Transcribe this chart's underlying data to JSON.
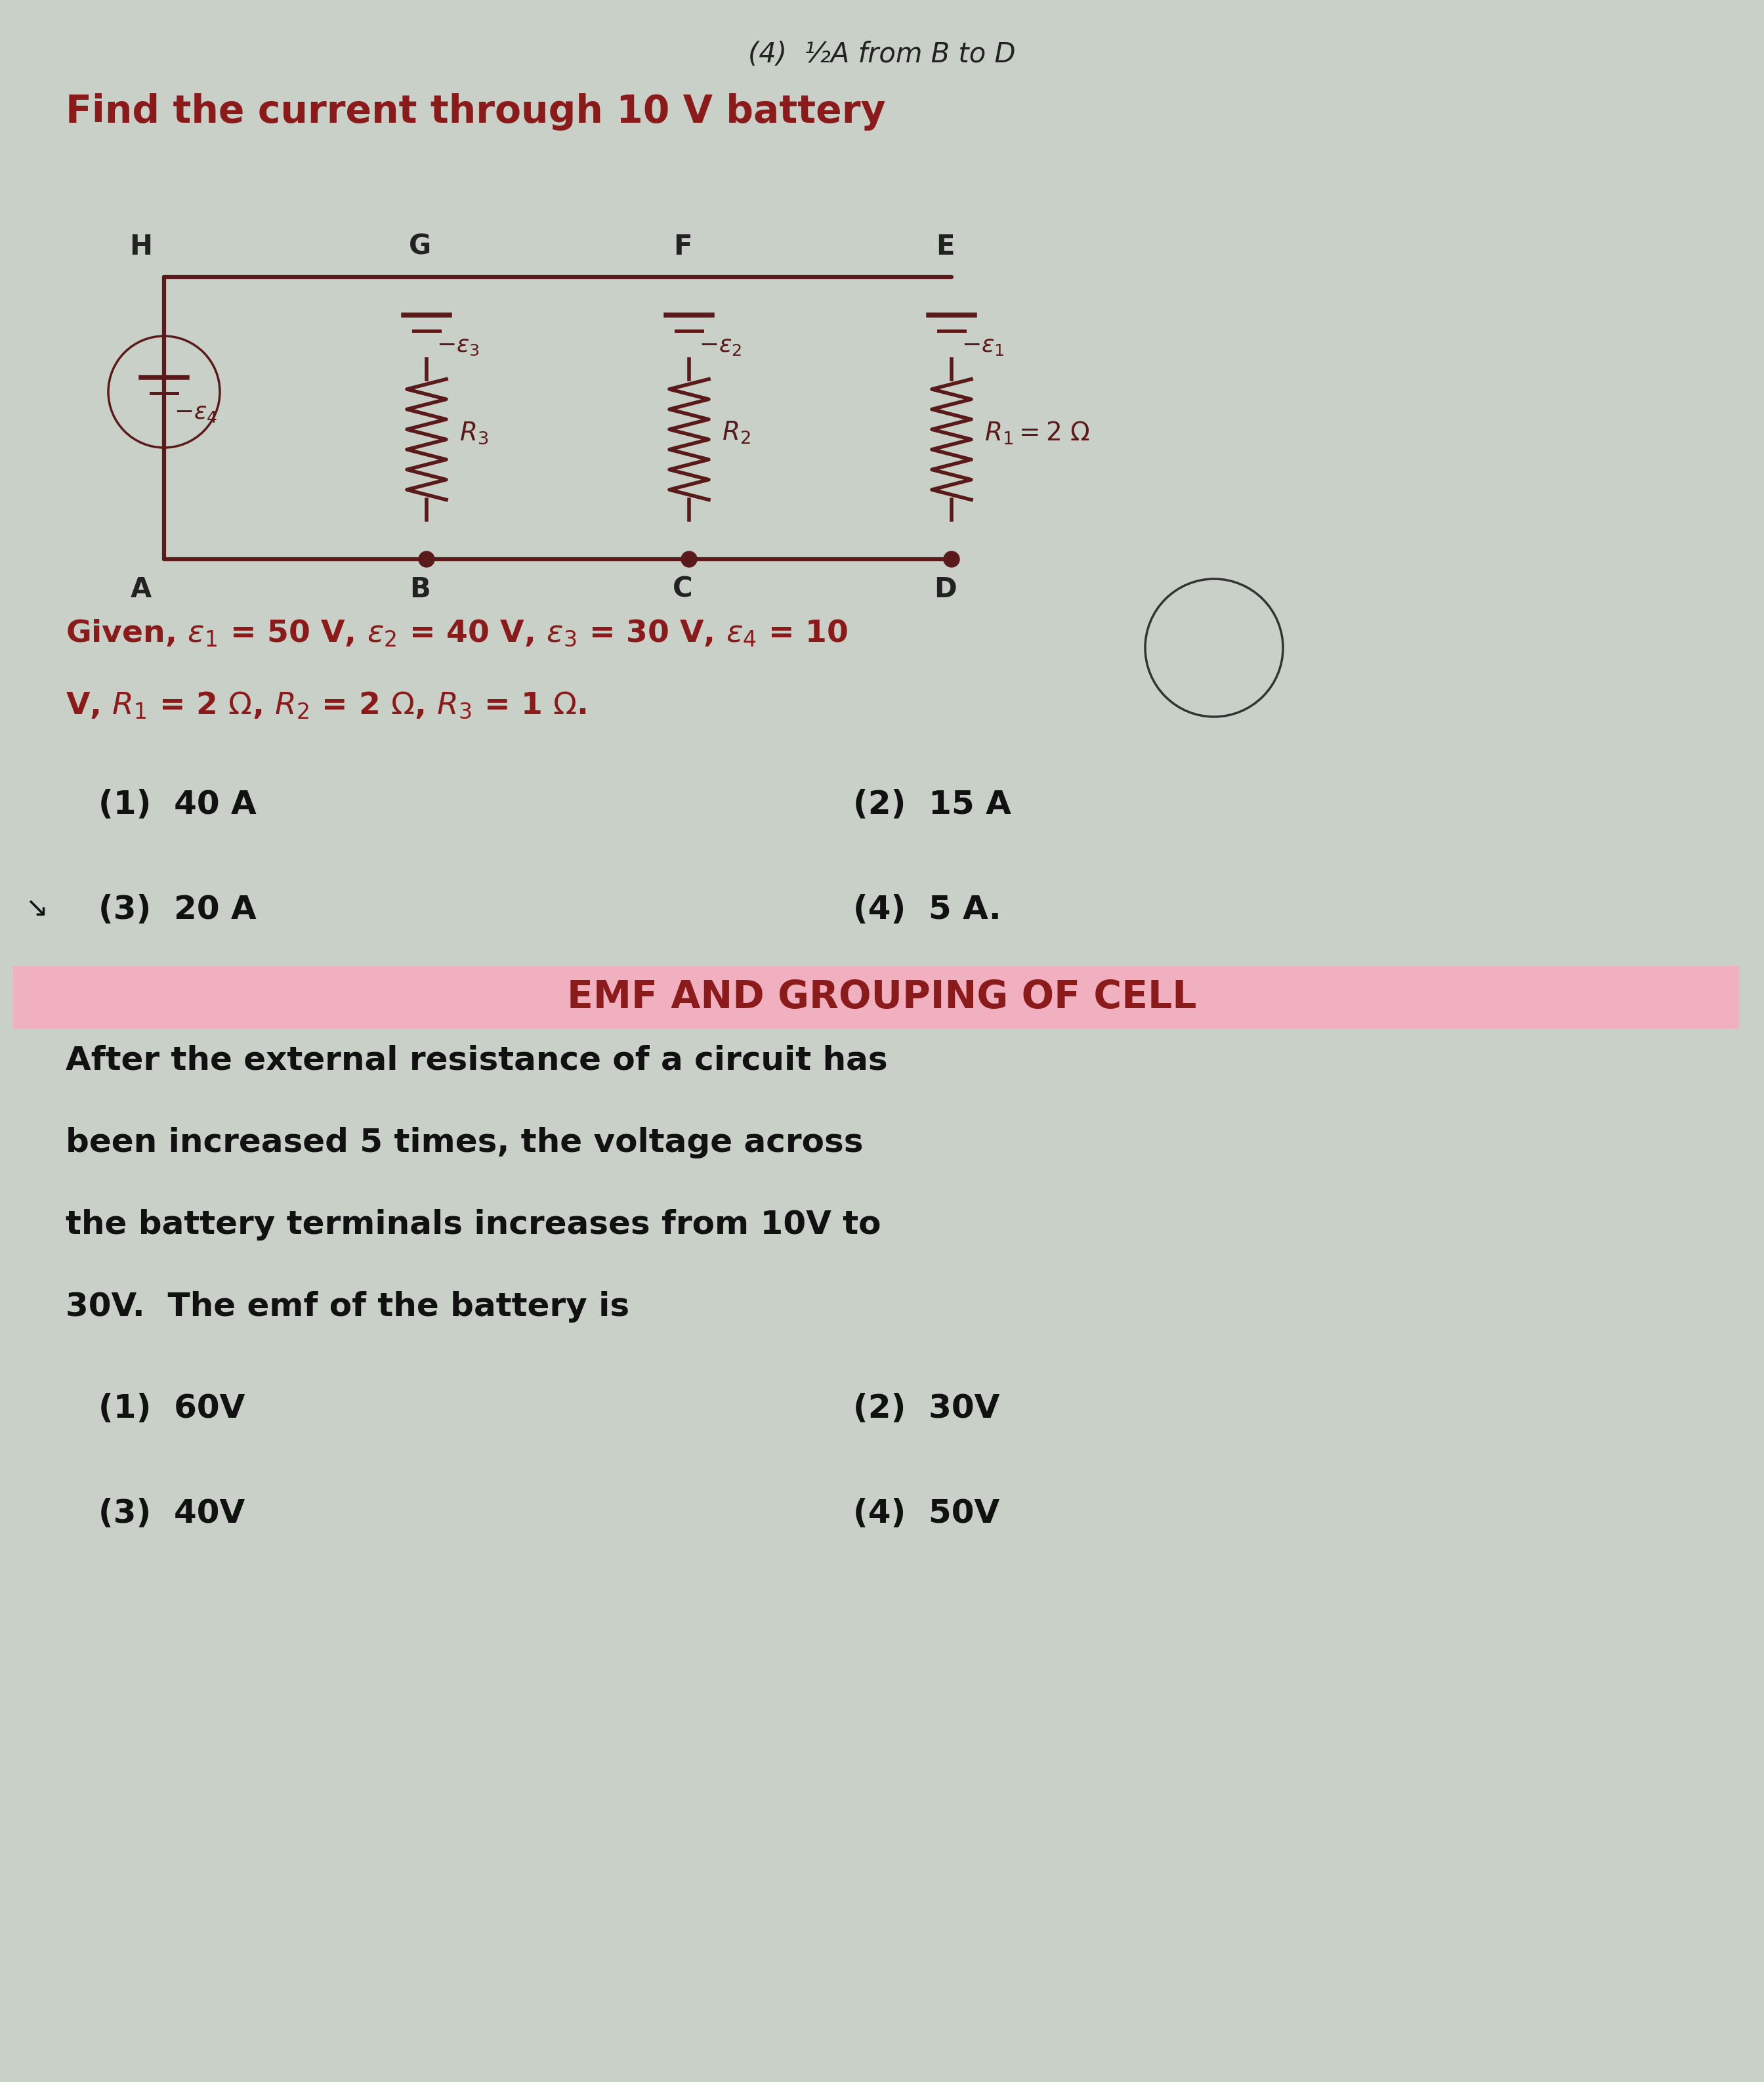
{
  "bg_color": "#c8d0c8",
  "title_top": "(4)  ½A from B to D",
  "title_question": "Find the current through 10 V battery",
  "title_color": "#8B1A1A",
  "title_top_color": "#222222",
  "circuit_color": "#5a1a1a",
  "node_labels": [
    "H",
    "G",
    "F",
    "E",
    "A",
    "B",
    "C",
    "D"
  ],
  "given_line1": "Given, ε₁ = 50 V, ε₂ = 40 V, ε₃ = 30 V, ε₄ = 10",
  "given_line2": "V, R₁ = 2 Ω, R₂ = 2 Ω, R₃ = 1 Ω.",
  "options": [
    "(1)  40 A",
    "(2)  15 A",
    "(3)  20 A",
    "(4)  5 A."
  ],
  "section_title": "EMF AND GROUPING OF CELL",
  "section_bg": "#f0b0c0",
  "next_question": "After the external resistance of a circuit has been increased 5 times, the voltage across the battery terminals increases from 10V to 30V.  The emf of the battery is",
  "next_options": [
    "(1)  60V",
    "(2)  30V",
    "(3)  40V",
    "(4)  50V"
  ]
}
